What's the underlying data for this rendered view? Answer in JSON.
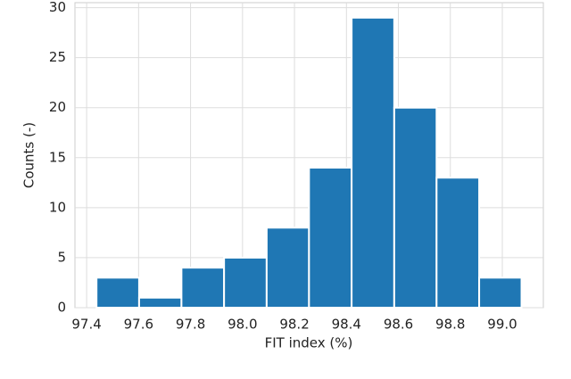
{
  "chart_data": {
    "type": "histogram",
    "xlabel": "FIT index (%)",
    "ylabel": "Counts (-)",
    "bins": [
      97.438,
      97.602,
      97.765,
      97.929,
      98.093,
      98.256,
      98.42,
      98.584,
      98.747,
      98.911,
      99.074
    ],
    "values": [
      3,
      1,
      4,
      5,
      8,
      14,
      29,
      20,
      13,
      3
    ],
    "color": "#1f77b4",
    "xlim": [
      97.355,
      99.158
    ],
    "xticks": [
      97.4,
      97.6,
      97.8,
      {
        "value": 98,
        "label": "98.0"
      },
      98.2,
      98.4,
      98.6,
      98.8,
      {
        "value": 99,
        "label": "99.0"
      }
    ],
    "ylim": [
      0,
      30.5
    ],
    "yticks": [
      0,
      5,
      10,
      15,
      20,
      25,
      30
    ],
    "grid": true
  }
}
